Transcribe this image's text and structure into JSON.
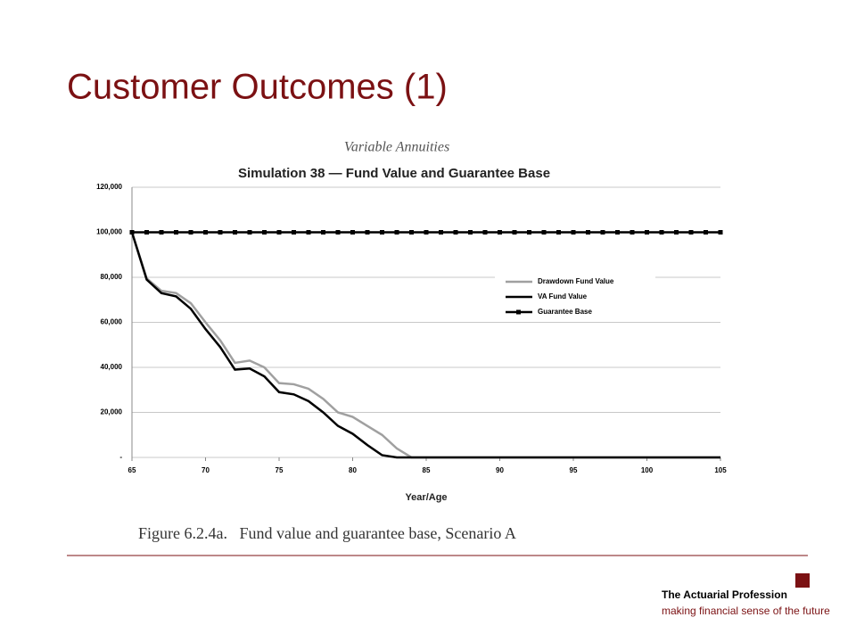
{
  "slide": {
    "title": "Customer Outcomes (1)",
    "caption": "Figure 6.2.4a.   Fund value and guarantee base, Scenario A",
    "footer": {
      "organization": "The Actuarial Profession",
      "tagline": "making financial sense of the future"
    }
  },
  "chart_data": {
    "type": "line",
    "title": "Simulation 38 — Fund Value and Guarantee Base",
    "subtitle": "Variable Annuities",
    "x_label": "Year/Age",
    "x": [
      65,
      66,
      67,
      68,
      69,
      70,
      71,
      72,
      73,
      74,
      75,
      76,
      77,
      78,
      79,
      80,
      81,
      82,
      83,
      84,
      85,
      86,
      87,
      88,
      89,
      90,
      91,
      92,
      93,
      94,
      95,
      96,
      97,
      98,
      99,
      100,
      101,
      102,
      103,
      104,
      105
    ],
    "series": [
      {
        "name": "Drawdown Fund Value",
        "color": "#a0a0a0",
        "values": [
          100000,
          79500,
          74000,
          73000,
          68500,
          60000,
          52000,
          42000,
          43000,
          40000,
          33000,
          32500,
          30500,
          26000,
          20000,
          18000,
          14000,
          10000,
          4000,
          0,
          0,
          0,
          0,
          0,
          0,
          0,
          0,
          0,
          0,
          0,
          0,
          0,
          0,
          0,
          0,
          0,
          0,
          0,
          0,
          0,
          0
        ]
      },
      {
        "name": "VA Fund Value",
        "color": "#000000",
        "values": [
          100000,
          79000,
          73000,
          71500,
          66000,
          57000,
          49000,
          39000,
          39500,
          36000,
          29000,
          28000,
          25000,
          20000,
          14000,
          10500,
          5500,
          1000,
          0,
          0,
          0,
          0,
          0,
          0,
          0,
          0,
          0,
          0,
          0,
          0,
          0,
          0,
          0,
          0,
          0,
          0,
          0,
          0,
          0,
          0,
          0
        ]
      },
      {
        "name": "Guarantee Base",
        "color": "#000000",
        "marker": "square",
        "values": [
          100000,
          100000,
          100000,
          100000,
          100000,
          100000,
          100000,
          100000,
          100000,
          100000,
          100000,
          100000,
          100000,
          100000,
          100000,
          100000,
          100000,
          100000,
          100000,
          100000,
          100000,
          100000,
          100000,
          100000,
          100000,
          100000,
          100000,
          100000,
          100000,
          100000,
          100000,
          100000,
          100000,
          100000,
          100000,
          100000,
          100000,
          100000,
          100000,
          100000,
          100000
        ]
      }
    ],
    "xlim": [
      65,
      105
    ],
    "xticks": [
      65,
      70,
      75,
      80,
      85,
      90,
      95,
      100,
      105
    ],
    "ylim": [
      0,
      120000
    ],
    "yticks": [
      {
        "value": 0,
        "label": "-"
      },
      {
        "value": 20000,
        "label": "20,000"
      },
      {
        "value": 40000,
        "label": "40,000"
      },
      {
        "value": 60000,
        "label": "60,000"
      },
      {
        "value": 80000,
        "label": "80,000"
      },
      {
        "value": 100000,
        "label": "100,000"
      },
      {
        "value": 120000,
        "label": "120,000"
      }
    ],
    "grid": true,
    "legend": "right"
  }
}
